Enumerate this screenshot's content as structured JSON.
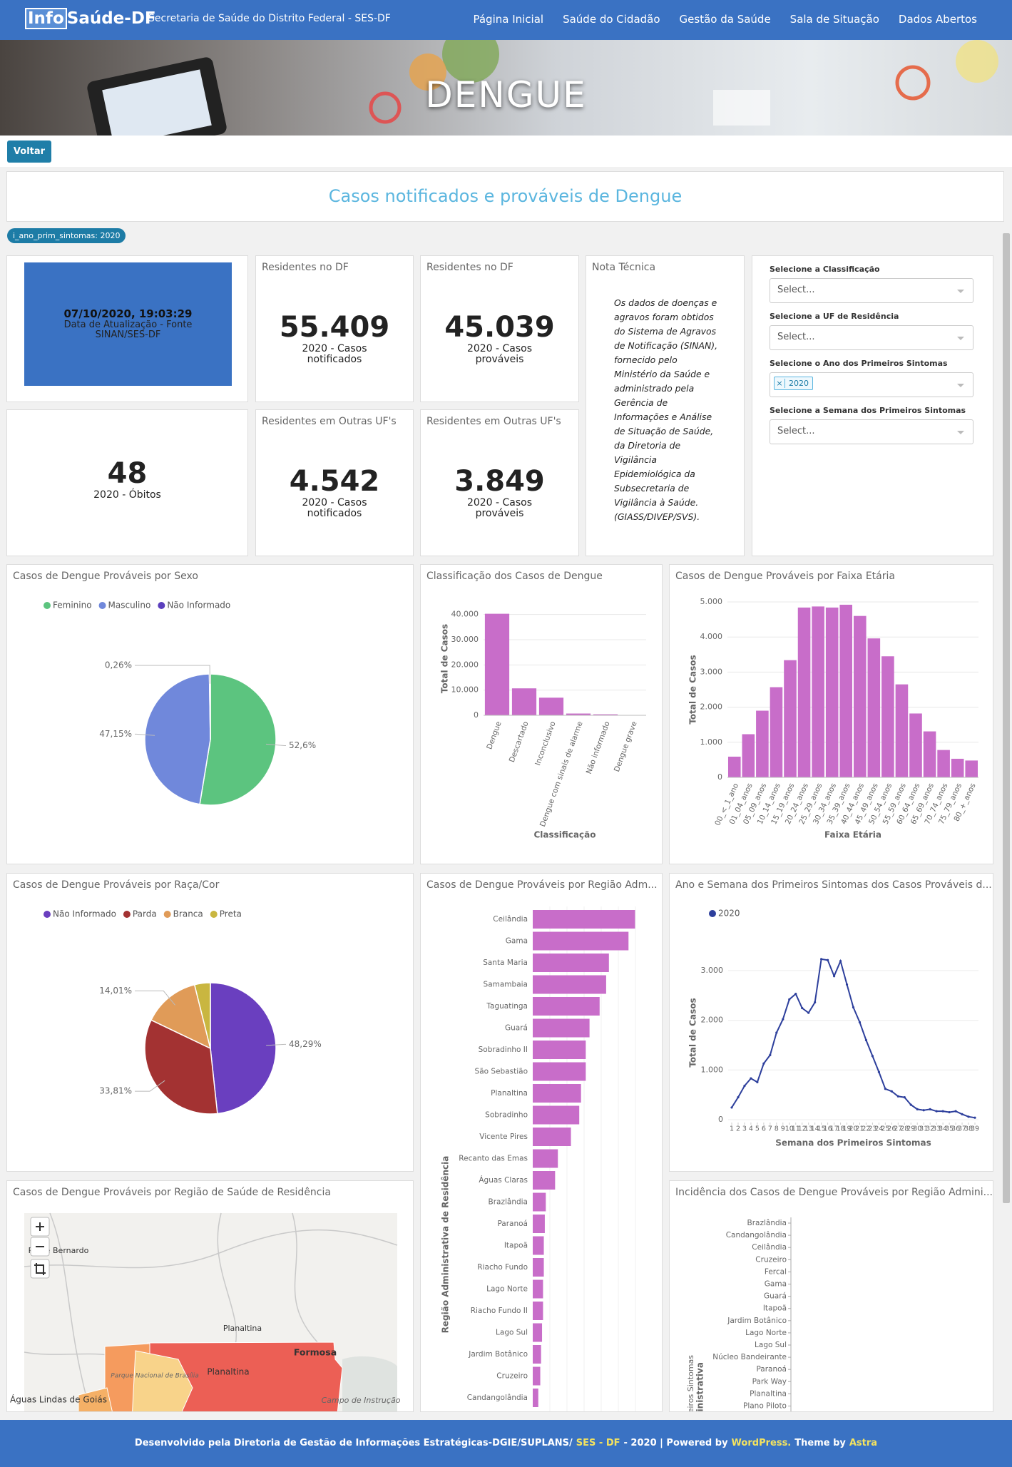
{
  "header": {
    "logo_prefix": "Info",
    "logo_suffix": "Saúde-DF",
    "subtitle": "Secretaria de Saúde do Distrito Federal - SES-DF",
    "nav": [
      "Página Inicial",
      "Saúde do Cidadão",
      "Gestão da Saúde",
      "Sala de Situação",
      "Dados Abertos"
    ]
  },
  "banner": {
    "title": "DENGUE"
  },
  "back_button": "Voltar",
  "dashboard_title": "Casos notificados e prováveis de Dengue",
  "filter_chip": "i_ano_prim_sintomas: 2020",
  "update_card": {
    "datetime": "07/10/2020, 19:03:29",
    "label": "Data de Atualização - Fonte SINAN/SES-DF"
  },
  "kpis": [
    {
      "title": "Residentes no DF",
      "value": "55.409",
      "label": "2020 - Casos notificados"
    },
    {
      "title": "Residentes no DF",
      "value": "45.039",
      "label": "2020 - Casos prováveis"
    },
    {
      "value": "48",
      "label": "2020 - Óbitos"
    },
    {
      "title": "Residentes em Outras UF's",
      "value": "4.542",
      "label": "2020 - Casos notificados"
    },
    {
      "title": "Residentes em Outras UF's",
      "value": "3.849",
      "label": "2020 - Casos prováveis"
    }
  ],
  "note": {
    "title": "Nota Técnica",
    "text": "Os dados de doenças e agravos foram obtidos do Sistema de Agravos de Notificação (SINAN), fornecido pelo Ministério da Saúde e administrado pela Gerência de Informações e Análise de Situação de Saúde, da Diretoria de Vigilância Epidemiológica da Subsecretaria de Vigilância à Saúde. (GIASS/DIVEP/SVS)."
  },
  "filters": [
    {
      "label": "Selecione a Classificação",
      "placeholder": "Select..."
    },
    {
      "label": "Selecione a UF de Residência",
      "placeholder": "Select..."
    },
    {
      "label": "Selecione o Ano dos Primeiros Sintomas",
      "selected": "2020"
    },
    {
      "label": "Selecione a Semana dos Primeiros Sintomas",
      "placeholder": "Select..."
    }
  ],
  "chart_data": [
    {
      "type": "pie",
      "title": "Casos de Dengue Prováveis por Sexo",
      "categories": [
        "Feminino",
        "Masculino",
        "Não Informado"
      ],
      "values": [
        52.6,
        47.15,
        0.26
      ],
      "value_labels": [
        "52,6%",
        "47,15%",
        "0,26%"
      ],
      "colors": [
        "#5cc47f",
        "#7088db",
        "#5b3fbd"
      ]
    },
    {
      "type": "bar",
      "title": "Classificação dos Casos de Dengue",
      "categories": [
        "Dengue",
        "Descartado",
        "Inconclusivo",
        "Dengue com sinais de alarme",
        "Não informado",
        "Dengue grave"
      ],
      "values": [
        40300,
        10700,
        7000,
        700,
        400,
        50
      ],
      "color": "#c86dc9",
      "ylim": [
        0,
        45000
      ],
      "yticks": [
        0,
        {
          "value": 10000,
          "label": "10.000"
        },
        {
          "value": 20000,
          "label": "20.000"
        },
        {
          "value": 30000,
          "label": "30.000"
        },
        {
          "value": 40000,
          "label": "40.000"
        }
      ],
      "grid": true,
      "xlabel": "Classificação",
      "ylabel": "Total de Casos"
    },
    {
      "type": "bar",
      "title": "Casos de Dengue Prováveis por Faixa Etária",
      "categories": [
        "00_<_1_ano",
        "01_04_anos",
        "05_09_anos",
        "10_14_anos",
        "15_19_anos",
        "20_24_anos",
        "25_29_anos",
        "30_34_anos",
        "35_39_anos",
        "40_44_anos",
        "45_49_anos",
        "50_54_anos",
        "55_59_anos",
        "60_64_anos",
        "65_69_anos",
        "70_74_anos",
        "75_79_anos",
        "80_+_anos"
      ],
      "values": [
        590,
        1230,
        1900,
        2570,
        3340,
        4840,
        4870,
        4840,
        4920,
        4600,
        3960,
        3450,
        2650,
        1820,
        1310,
        780,
        530,
        480
      ],
      "color": "#c86dc9",
      "ylim": [
        0,
        5000
      ],
      "yticks": [
        0,
        {
          "value": 1000,
          "label": "1.000"
        },
        {
          "value": 2000,
          "label": "2.000"
        },
        {
          "value": 3000,
          "label": "3.000"
        },
        {
          "value": 4000,
          "label": "4.000"
        },
        {
          "value": 5000,
          "label": "5.000"
        }
      ],
      "grid": true,
      "xlabel": "Faixa Etária",
      "ylabel": "Total de Casos"
    },
    {
      "type": "pie",
      "title": "Casos de Dengue Prováveis por Raça/Cor",
      "categories": [
        "Não Informado",
        "Parda",
        "Branca",
        "Preta"
      ],
      "values": [
        48.29,
        33.81,
        14.01,
        3.89
      ],
      "value_labels": [
        "48,29%",
        "33,81%",
        "14,01%",
        null
      ],
      "colors": [
        "#6a3fbf",
        "#a33232",
        "#e09b58",
        "#c9b640"
      ]
    },
    {
      "type": "hbar",
      "title": "Casos de Dengue Prováveis por Região Adm...",
      "categories": [
        "Ceilândia",
        "Gama",
        "Santa Maria",
        "Samambaia",
        "Taguatinga",
        "Guará",
        "Sobradinho II",
        "São Sebastião",
        "Planaltina",
        "Sobradinho",
        "Vicente Pires",
        "Recanto das Emas",
        "Águas Claras",
        "Brazlândia",
        "Paranoá",
        "Itapoã",
        "Riacho Fundo",
        "Lago Norte",
        "Riacho Fundo II",
        "Lago Sul",
        "Jardim Botânico",
        "Cruzeiro",
        "Candangolândia"
      ],
      "values": [
        5170,
        4840,
        3850,
        3710,
        3380,
        2870,
        2680,
        2680,
        2440,
        2350,
        1930,
        1270,
        1130,
        660,
        610,
        560,
        560,
        520,
        520,
        470,
        420,
        380,
        280
      ],
      "color": "#c86dc9",
      "xlim": [
        0,
        6200
      ],
      "ylabel": "Região Administrativa de Residência"
    },
    {
      "type": "line",
      "title": "Ano e Semana dos Primeiros Sintomas dos Casos Prováveis d...",
      "x": [
        1,
        2,
        3,
        4,
        5,
        6,
        7,
        8,
        9,
        10,
        11,
        12,
        13,
        14,
        15,
        16,
        17,
        18,
        19,
        20,
        21,
        22,
        23,
        24,
        25,
        26,
        27,
        28,
        29,
        30,
        31,
        32,
        33,
        34,
        35,
        36,
        37,
        38,
        39
      ],
      "series": [
        {
          "name": "2020",
          "color": "#2d3f9c",
          "values": [
            245,
            450,
            680,
            830,
            755,
            1130,
            1300,
            1750,
            2020,
            2420,
            2530,
            2245,
            2150,
            2360,
            3230,
            3210,
            2890,
            3190,
            2720,
            2260,
            1960,
            1600,
            1280,
            960,
            620,
            570,
            470,
            450,
            300,
            210,
            190,
            210,
            170,
            170,
            150,
            170,
            110,
            60,
            40
          ]
        }
      ],
      "xlim": [
        1,
        39
      ],
      "xticks": [
        1,
        2,
        3,
        4,
        5,
        6,
        7,
        8,
        9,
        10,
        11,
        12,
        13,
        14,
        15,
        16,
        17,
        18,
        19,
        20,
        21,
        22,
        23,
        24,
        25,
        26,
        27,
        28,
        29,
        30,
        31,
        32,
        33,
        34,
        35,
        36,
        37,
        38,
        39
      ],
      "ylim": [
        0,
        3500
      ],
      "yticks": [
        0,
        {
          "value": 1000,
          "label": "1.000"
        },
        {
          "value": 2000,
          "label": "2.000"
        },
        {
          "value": 3000,
          "label": "3.000"
        }
      ],
      "xlabel": "Semana dos Primeiros Sintomas",
      "ylabel": "Total de Casos"
    },
    {
      "type": "map",
      "title": "Casos de Dengue Prováveis por Região de Saúde de Residência",
      "labels": [
        "Padre Bernardo",
        "Planaltina",
        "Formosa",
        "Planaltina",
        "Parque Nacional de Brasília",
        "Águas Lindas de Goiás",
        "Campo de Instrução"
      ]
    },
    {
      "type": "hbar",
      "title": "Incidência dos Casos de Dengue Prováveis por Região Admini...",
      "categories": [
        "Brazlândia",
        "Candangolândia",
        "Ceilândia",
        "Cruzeiro",
        "Fercal",
        "Gama",
        "Guará",
        "Itapoã",
        "Jardim Botânico",
        "Lago Norte",
        "Lago Sul",
        "Núcleo Bandeirante",
        "Paranoá",
        "Park Way",
        "Planaltina",
        "Plano Piloto"
      ],
      "ylabel": "meiros Sintomas",
      "ylabel2": "ministrativa"
    }
  ],
  "footer": {
    "parts": [
      "Desenvolvido pela Diretoria de Gestão de Informações Estratégicas-DGIE/SUPLANS/",
      "SES - DF",
      "- 2020 | Powered by",
      "WordPress.",
      "Theme by",
      "Astra"
    ]
  }
}
